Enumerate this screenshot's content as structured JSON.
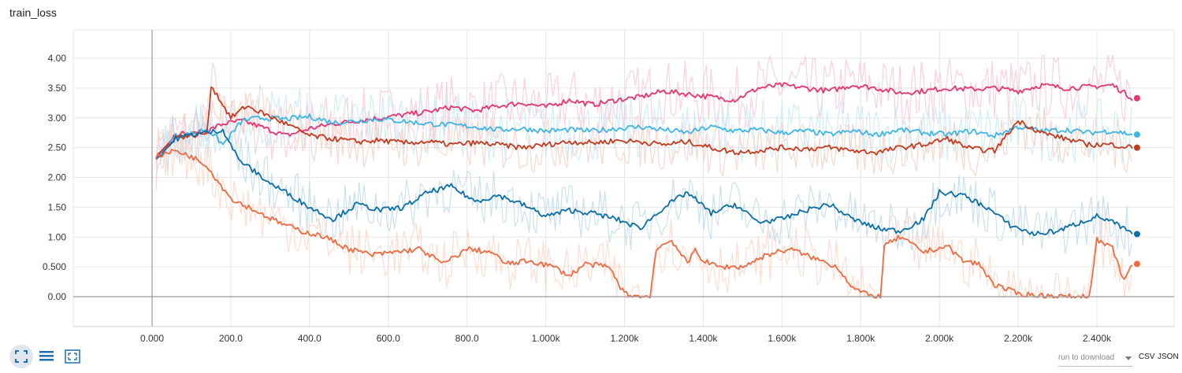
{
  "chart_data": {
    "type": "line",
    "title": "train_loss",
    "xlabel": "",
    "ylabel": "",
    "xlim": [
      -200,
      2500
    ],
    "ylim": [
      -0.5,
      4.5
    ],
    "x_ticks": [
      0,
      200,
      400,
      600,
      800,
      1000,
      1200,
      1400,
      1600,
      1800,
      2000,
      2200,
      2400
    ],
    "x_tick_labels": [
      "0.000",
      "200.0",
      "400.0",
      "600.0",
      "800.0",
      "1.000k",
      "1.200k",
      "1.400k",
      "1.600k",
      "1.800k",
      "2.000k",
      "2.200k",
      "2.400k"
    ],
    "y_ticks": [
      0,
      0.5,
      1.0,
      1.5,
      2.0,
      2.5,
      3.0,
      3.5,
      4.0
    ],
    "y_tick_labels": [
      "0.00",
      "0.500",
      "1.00",
      "1.50",
      "2.00",
      "2.50",
      "3.00",
      "3.50",
      "4.00"
    ],
    "grid": true,
    "series": [
      {
        "color": "#e8336d",
        "raw_color": "#f9c5d5",
        "x": [
          10,
          60,
          100,
          140,
          180,
          230,
          280,
          340,
          400,
          460,
          520,
          580,
          640,
          700,
          760,
          820,
          880,
          940,
          1000,
          1060,
          1120,
          1180,
          1240,
          1300,
          1360,
          1420,
          1480,
          1540,
          1600,
          1660,
          1720,
          1780,
          1840,
          1900,
          1960,
          2020,
          2080,
          2140,
          2200,
          2260,
          2320,
          2380,
          2440,
          2490
        ],
        "values": [
          2.32,
          2.74,
          2.72,
          2.78,
          2.9,
          2.95,
          2.84,
          2.7,
          2.82,
          2.9,
          2.95,
          3.0,
          3.05,
          3.1,
          3.18,
          3.12,
          3.2,
          3.25,
          3.18,
          3.3,
          3.22,
          3.3,
          3.35,
          3.45,
          3.4,
          3.35,
          3.3,
          3.5,
          3.55,
          3.5,
          3.45,
          3.55,
          3.5,
          3.42,
          3.45,
          3.5,
          3.48,
          3.5,
          3.45,
          3.55,
          3.5,
          3.52,
          3.55,
          3.33
        ]
      },
      {
        "color": "#3db5e6",
        "raw_color": "#c6e8f6",
        "x": [
          10,
          60,
          100,
          140,
          180,
          230,
          280,
          340,
          400,
          460,
          520,
          580,
          640,
          700,
          760,
          820,
          880,
          940,
          1000,
          1060,
          1120,
          1180,
          1240,
          1300,
          1360,
          1420,
          1480,
          1540,
          1600,
          1660,
          1720,
          1780,
          1840,
          1900,
          1960,
          2020,
          2080,
          2140,
          2200,
          2260,
          2320,
          2380,
          2440,
          2490
        ],
        "values": [
          2.31,
          2.7,
          2.73,
          2.82,
          2.55,
          2.96,
          3.0,
          2.98,
          3.02,
          2.92,
          2.95,
          2.98,
          2.94,
          2.9,
          2.88,
          2.85,
          2.8,
          2.82,
          2.78,
          2.8,
          2.78,
          2.82,
          2.85,
          2.8,
          2.75,
          2.85,
          2.78,
          2.8,
          2.75,
          2.78,
          2.72,
          2.78,
          2.72,
          2.8,
          2.75,
          2.72,
          2.78,
          2.7,
          2.85,
          2.78,
          2.8,
          2.75,
          2.78,
          2.72
        ]
      },
      {
        "color": "#c53a1e",
        "raw_color": "#f6cdbf",
        "x": [
          10,
          60,
          100,
          140,
          150,
          200,
          240,
          290,
          340,
          400,
          460,
          520,
          580,
          640,
          700,
          760,
          820,
          880,
          940,
          1000,
          1060,
          1120,
          1180,
          1240,
          1300,
          1360,
          1420,
          1480,
          1540,
          1600,
          1660,
          1720,
          1780,
          1840,
          1900,
          1960,
          2020,
          2080,
          2140,
          2200,
          2260,
          2320,
          2380,
          2440,
          2490
        ],
        "values": [
          2.35,
          2.68,
          2.7,
          2.75,
          3.55,
          3.0,
          3.2,
          3.05,
          2.9,
          2.7,
          2.65,
          2.6,
          2.62,
          2.58,
          2.6,
          2.55,
          2.58,
          2.55,
          2.5,
          2.55,
          2.6,
          2.58,
          2.62,
          2.6,
          2.55,
          2.6,
          2.5,
          2.42,
          2.45,
          2.5,
          2.48,
          2.5,
          2.45,
          2.42,
          2.5,
          2.55,
          2.65,
          2.48,
          2.45,
          2.95,
          2.75,
          2.65,
          2.55,
          2.55,
          2.5
        ]
      },
      {
        "color": "#0b6ea8",
        "raw_color": "#bcd9ea",
        "x": [
          10,
          60,
          100,
          140,
          180,
          220,
          260,
          300,
          340,
          400,
          460,
          520,
          580,
          640,
          700,
          760,
          820,
          880,
          940,
          1000,
          1060,
          1120,
          1180,
          1240,
          1300,
          1360,
          1420,
          1480,
          1540,
          1600,
          1660,
          1720,
          1780,
          1840,
          1900,
          1960,
          2000,
          2060,
          2120,
          2180,
          2240,
          2300,
          2360,
          2400,
          2440,
          2490
        ],
        "values": [
          2.3,
          2.65,
          2.72,
          2.75,
          2.8,
          2.3,
          2.1,
          1.9,
          1.75,
          1.5,
          1.3,
          1.55,
          1.45,
          1.5,
          1.75,
          1.85,
          1.6,
          1.7,
          1.55,
          1.35,
          1.45,
          1.4,
          1.3,
          1.15,
          1.5,
          1.75,
          1.4,
          1.55,
          1.25,
          1.3,
          1.45,
          1.55,
          1.3,
          1.15,
          1.1,
          1.3,
          1.75,
          1.7,
          1.5,
          1.2,
          1.05,
          1.1,
          1.25,
          1.35,
          1.25,
          1.05
        ]
      },
      {
        "color": "#f1693e",
        "raw_color": "#fcd4c6",
        "x": [
          10,
          60,
          100,
          140,
          160,
          200,
          260,
          320,
          380,
          440,
          500,
          560,
          620,
          680,
          740,
          800,
          860,
          900,
          960,
          1020,
          1060,
          1100,
          1160,
          1200,
          1240,
          1265,
          1280,
          1320,
          1360,
          1380,
          1400,
          1440,
          1500,
          1560,
          1620,
          1680,
          1740,
          1780,
          1820,
          1850,
          1860,
          1900,
          1960,
          2020,
          2060,
          2100,
          2140,
          2200,
          2260,
          2320,
          2380,
          2400,
          2440,
          2470,
          2490
        ],
        "values": [
          2.35,
          2.45,
          2.35,
          2.2,
          2.0,
          1.65,
          1.45,
          1.25,
          1.1,
          1.0,
          0.8,
          0.7,
          0.75,
          0.8,
          0.55,
          0.8,
          0.75,
          0.55,
          0.6,
          0.5,
          0.35,
          0.55,
          0.5,
          0.05,
          0.0,
          0.0,
          0.8,
          0.95,
          0.55,
          0.8,
          0.6,
          0.5,
          0.5,
          0.7,
          0.8,
          0.65,
          0.5,
          0.15,
          0.02,
          0.0,
          0.85,
          1.0,
          0.75,
          0.85,
          0.6,
          0.55,
          0.2,
          0.05,
          0.02,
          0.0,
          0.0,
          0.95,
          0.8,
          0.25,
          0.55
        ]
      }
    ]
  },
  "controls": {
    "expand_icon": "fit-expand-icon",
    "data_icon": "list-icon",
    "fit_icon": "fit-domain-icon",
    "run_select_placeholder": "run to download",
    "csv_label": "CSV",
    "json_label": "JSON"
  }
}
